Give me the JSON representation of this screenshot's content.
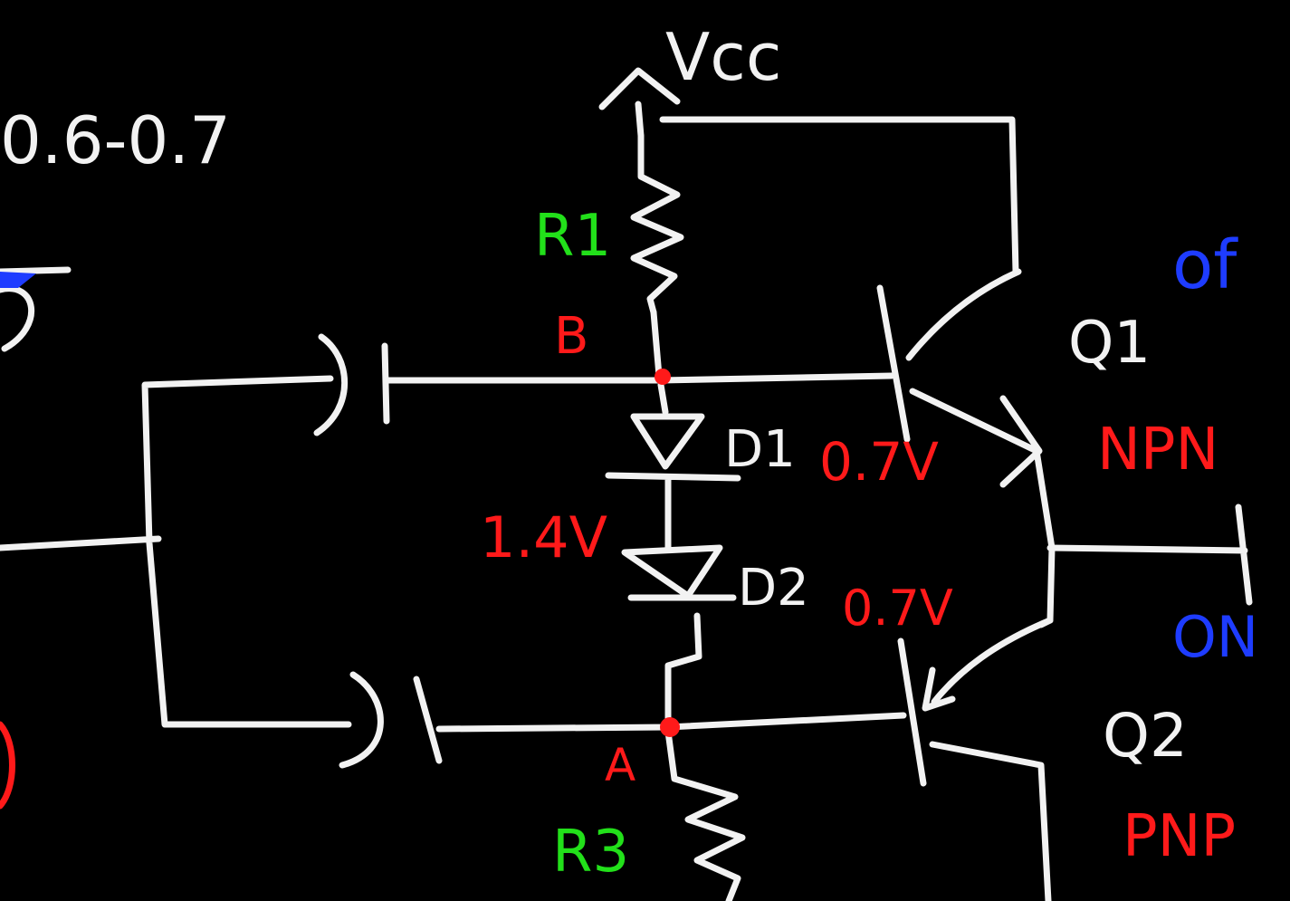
{
  "labels": {
    "vcc": "Vcc",
    "range": "0.6-0.7",
    "r1": "R1",
    "r3": "R3",
    "node_b": "B",
    "node_a": "A",
    "d1": "D1",
    "d2": "D2",
    "diode_drop_total": "1.4V",
    "vbe_q1": "0.7V",
    "vbe_q2": "0.7V",
    "q1": "Q1",
    "q1_type": "NPN",
    "q2": "Q2",
    "q2_type": "PNP",
    "q1_state": "of",
    "q2_state": "ON"
  },
  "colors": {
    "background": "#000000",
    "wire": "#f2f2f2",
    "red": "#ff1a1a",
    "green": "#22e01a",
    "blue": "#1e3cff"
  }
}
